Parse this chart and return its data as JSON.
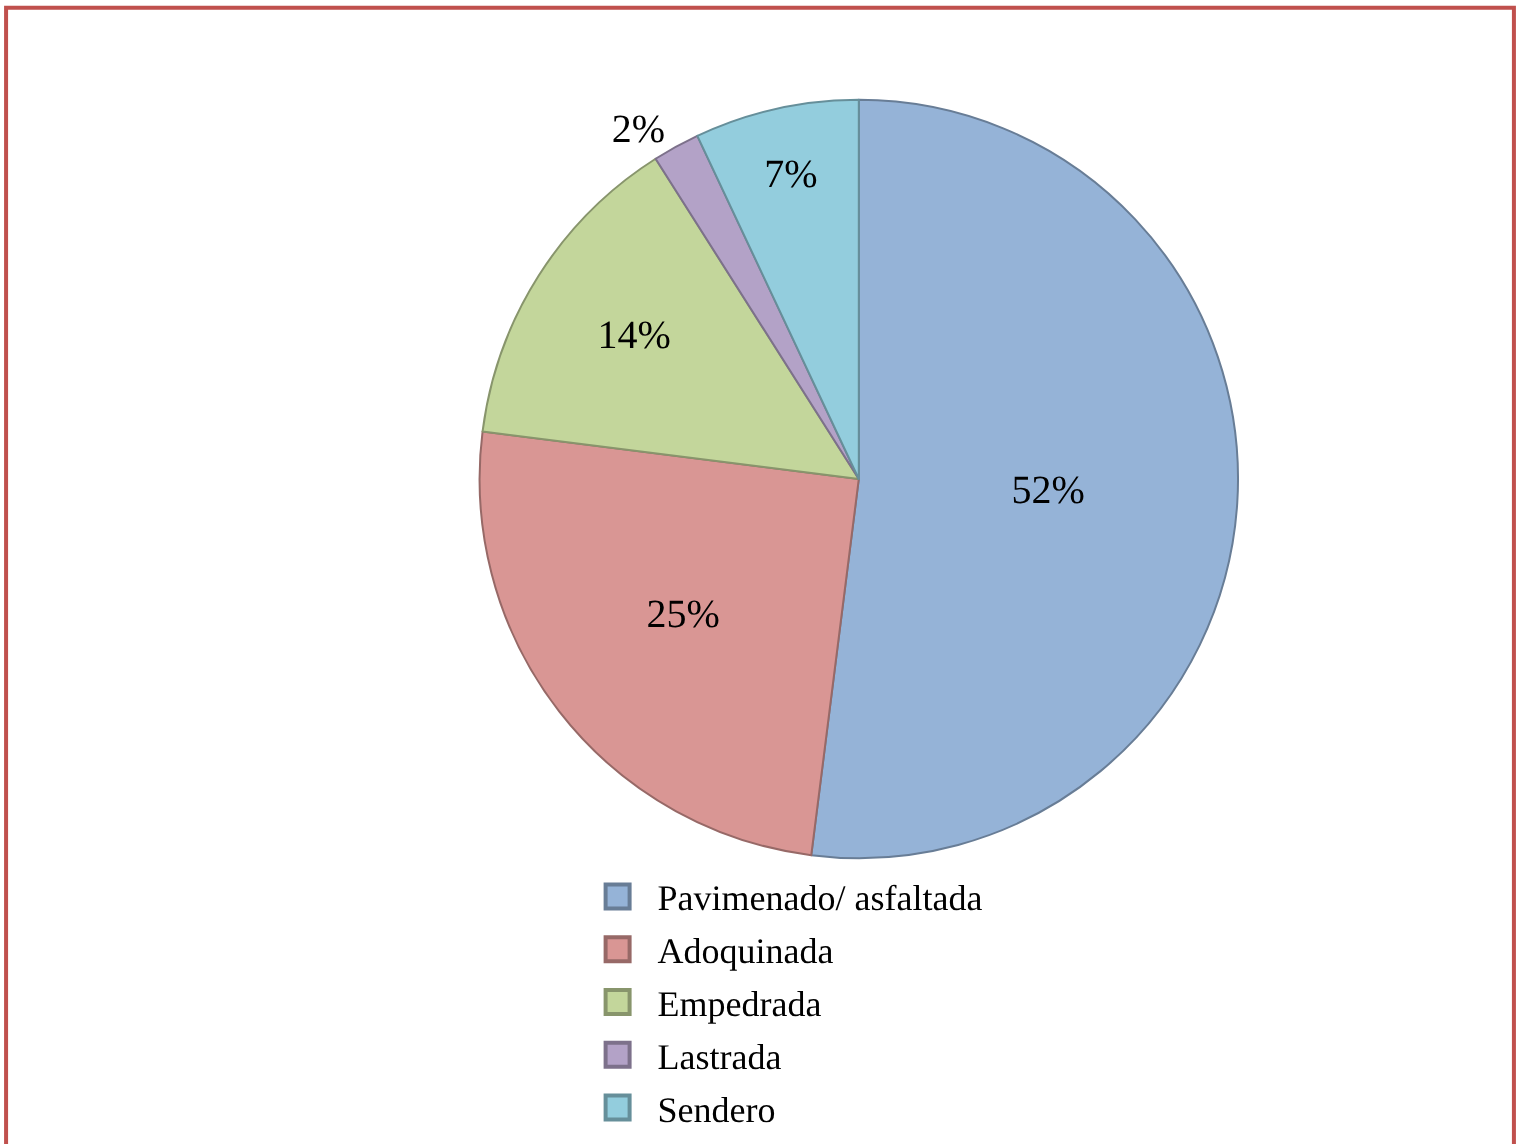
{
  "chart_data": {
    "type": "pie",
    "categories": [
      "Pavimenado/ asfaltada",
      "Adoquinada",
      "Empedrada",
      "Lastrada",
      "Sendero"
    ],
    "values": [
      52,
      25,
      14,
      2,
      7
    ],
    "value_labels": [
      "52%",
      "25%",
      "14%",
      "2%",
      "7%"
    ],
    "colors": [
      "#95b3d7",
      "#d99694",
      "#c3d69b",
      "#b3a2c7",
      "#93cddd"
    ],
    "legend": "bottom"
  }
}
